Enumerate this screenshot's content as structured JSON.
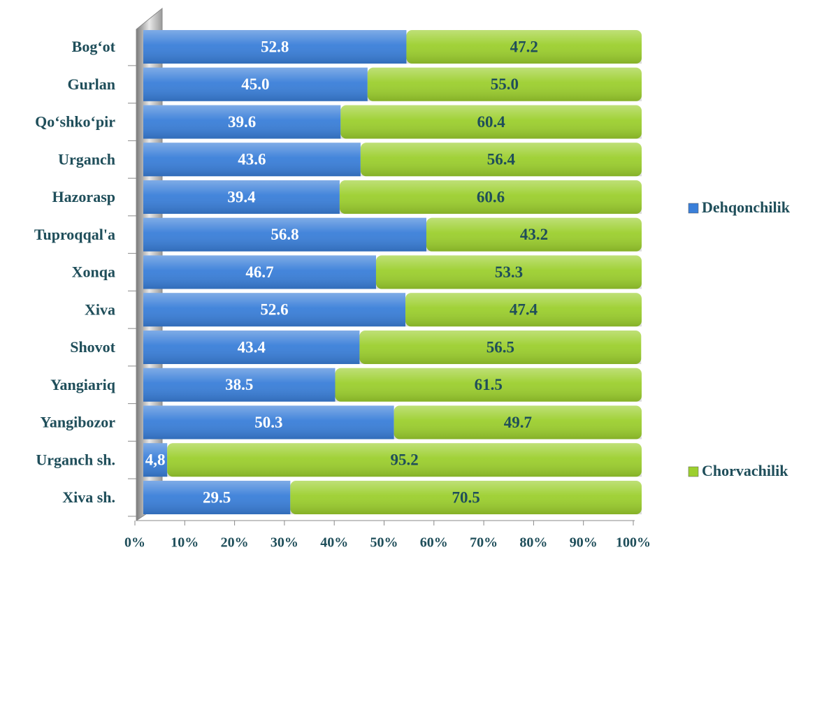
{
  "chart_data": {
    "type": "bar",
    "orientation": "horizontal",
    "stacked": true,
    "categories": [
      "Bog‘ot",
      "Gurlan",
      "Qo‘shko‘pir",
      "Urganch",
      "Hazorasp",
      "Tuproqqal'a",
      "Xonqa",
      "Xiva",
      "Shovot",
      "Yangiariq",
      "Yangibozor",
      "Urganch sh.",
      "Xiva sh."
    ],
    "series": [
      {
        "name": "Dehqonchilik",
        "color": "#3a7fd9",
        "values": [
          52.8,
          45.0,
          39.6,
          43.6,
          39.4,
          56.8,
          46.7,
          52.6,
          43.4,
          38.5,
          50.3,
          4.8,
          29.5
        ],
        "value_labels": [
          "52.8",
          "45.0",
          "39.6",
          "43.6",
          "39.4",
          "56.8",
          "46.7",
          "52.6",
          "43.4",
          "38.5",
          "50.3",
          "4,8",
          "29.5"
        ]
      },
      {
        "name": "Chorvachilik",
        "color": "#9ccf2e",
        "values": [
          47.2,
          55.0,
          60.4,
          56.4,
          60.6,
          43.2,
          53.3,
          47.4,
          56.5,
          61.5,
          49.7,
          95.2,
          70.5
        ],
        "value_labels": [
          "47.2",
          "55.0",
          "60.4",
          "56.4",
          "60.6",
          "43.2",
          "53.3",
          "47.4",
          "56.5",
          "61.5",
          "49.7",
          "95.2",
          "70.5"
        ]
      }
    ],
    "xlim": [
      0,
      100
    ],
    "xticks": [
      {
        "value": 0,
        "label": "0%"
      },
      {
        "value": 10,
        "label": "10%"
      },
      {
        "value": 20,
        "label": "20%"
      },
      {
        "value": 30,
        "label": "30%"
      },
      {
        "value": 40,
        "label": "40%"
      },
      {
        "value": 50,
        "label": "50%"
      },
      {
        "value": 60,
        "label": "60%"
      },
      {
        "value": 70,
        "label": "70%"
      },
      {
        "value": 80,
        "label": "80%"
      },
      {
        "value": 90,
        "label": "90%"
      },
      {
        "value": 100,
        "label": "100%"
      }
    ],
    "legend": "right"
  }
}
